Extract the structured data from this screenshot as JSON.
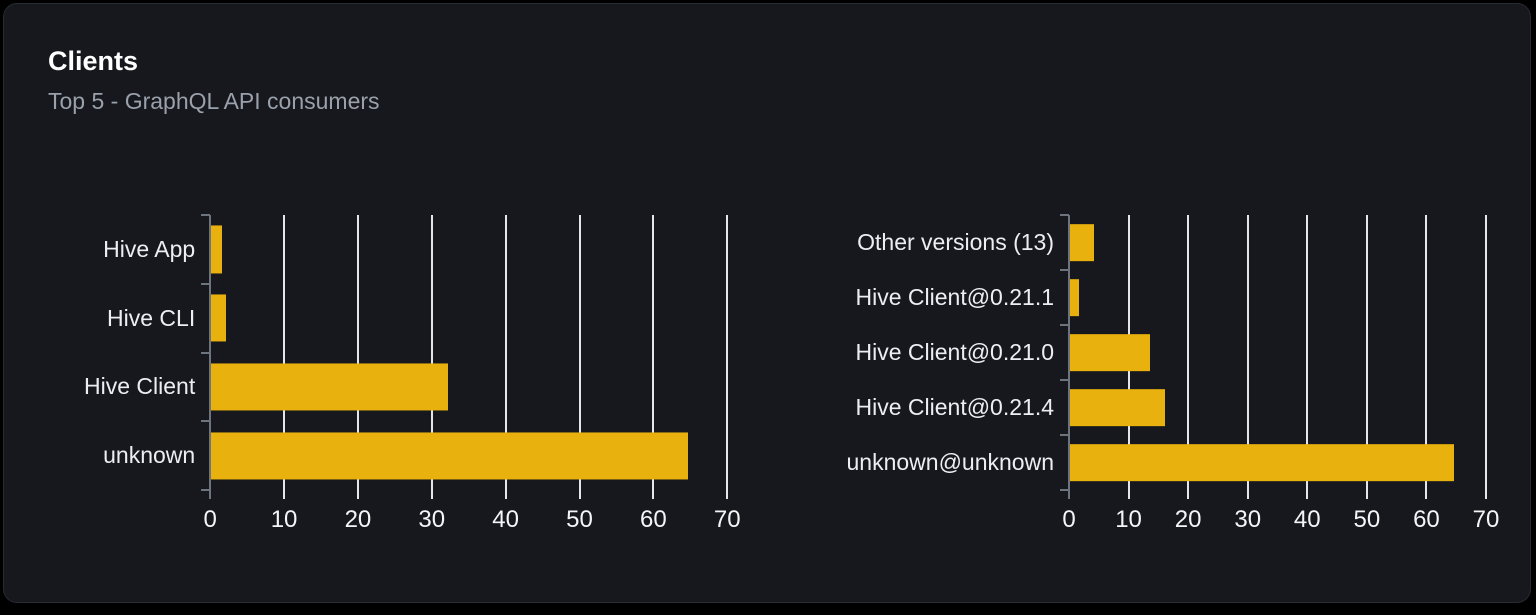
{
  "card": {
    "title": "Clients",
    "subtitle": "Top 5 - GraphQL API consumers"
  },
  "colors": {
    "bar": "#e9b10d",
    "card_background": "#16181d",
    "gridline": "#e3e6ec",
    "axis": "#6e747e",
    "title_text": "#ffffff",
    "subtitle_text": "#9aa1ab",
    "label_text": "#eceef1"
  },
  "chart_data": [
    {
      "type": "bar",
      "orientation": "horizontal",
      "title": "",
      "categories": [
        "Hive App",
        "Hive CLI",
        "Hive Client",
        "unknown"
      ],
      "values": [
        1.5,
        2,
        32,
        64.5
      ],
      "x_ticks": [
        0,
        10,
        20,
        30,
        40,
        50,
        60,
        70
      ],
      "xlim": [
        0,
        70
      ],
      "xlabel": "",
      "ylabel": "",
      "grid": true,
      "legend": false,
      "bar_color": "#e9b10d"
    },
    {
      "type": "bar",
      "orientation": "horizontal",
      "title": "",
      "categories": [
        "Other versions (13)",
        "Hive Client@0.21.1",
        "Hive Client@0.21.0",
        "Hive Client@0.21.4",
        "unknown@unknown"
      ],
      "values": [
        4,
        1.5,
        13.5,
        16,
        64.5
      ],
      "x_ticks": [
        0,
        10,
        20,
        30,
        40,
        50,
        60,
        70
      ],
      "xlim": [
        0,
        70
      ],
      "xlabel": "",
      "ylabel": "",
      "grid": true,
      "legend": false,
      "bar_color": "#e9b10d"
    }
  ]
}
